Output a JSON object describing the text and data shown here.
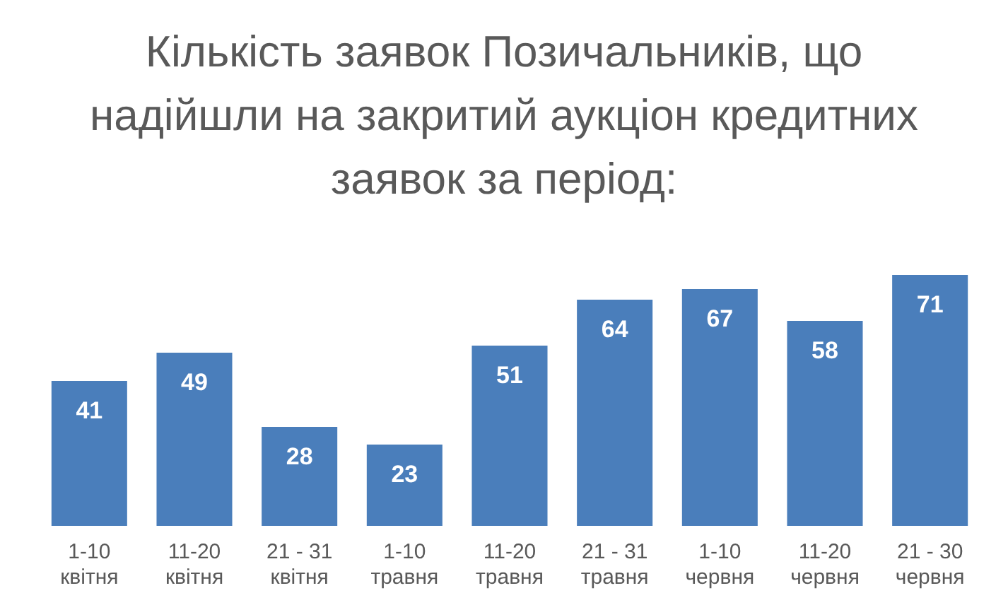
{
  "chart_data": {
    "type": "bar",
    "title": "Кількість заявок Позичальників, що надійшли на закритий аукціон кредитних заявок за період:",
    "categories": [
      "1-10 квітня",
      "11-20 квітня",
      "21 - 31 квітня",
      "1-10 травня",
      "11-20 травня",
      "21 - 31 травня",
      "1-10 червня",
      "11-20 червня",
      "21 - 30 червня"
    ],
    "values": [
      41,
      49,
      28,
      23,
      51,
      64,
      67,
      58,
      71
    ],
    "color": "#4a7ebb",
    "data_labels": true,
    "grid": false,
    "legend": false
  }
}
